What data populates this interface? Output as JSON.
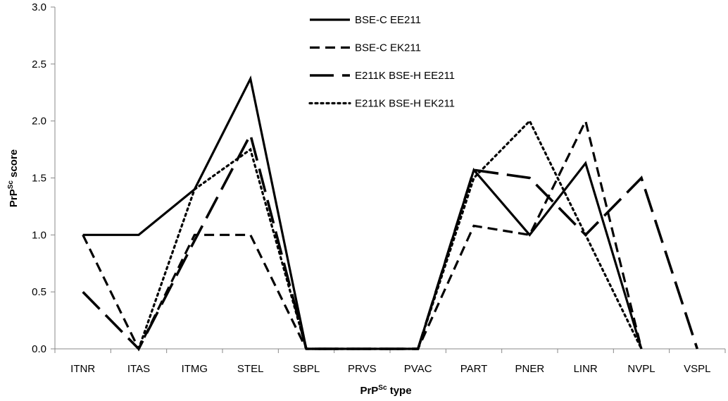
{
  "chart_data": {
    "type": "line",
    "title": "",
    "xlabel": {
      "main": "PrP",
      "sup": "Sc",
      "rest": " type"
    },
    "ylabel": {
      "main": "PrP",
      "sup": "Sc",
      "rest": " score"
    },
    "ylim": [
      0,
      3.0
    ],
    "yticks": [
      "0.0",
      "0.5",
      "1.0",
      "1.5",
      "2.0",
      "2.5",
      "3.0"
    ],
    "grid": false,
    "legend_position": "top-center",
    "categories": [
      "ITNR",
      "ITAS",
      "ITMG",
      "STEL",
      "SBPL",
      "PRVS",
      "PVAC",
      "PART",
      "PNER",
      "LINR",
      "NVPL",
      "VSPL"
    ],
    "series": [
      {
        "name": "BSE-C EE211",
        "style": "solid",
        "color": "#000000",
        "values": [
          1.0,
          1.0,
          1.4,
          2.37,
          0,
          0,
          0,
          1.57,
          1.0,
          1.63,
          0,
          null
        ]
      },
      {
        "name": "BSE-C EK211",
        "style": "dashed",
        "color": "#000000",
        "values": [
          1.0,
          0,
          1.0,
          1.0,
          0,
          0,
          0,
          1.08,
          1.0,
          2.0,
          0,
          null
        ]
      },
      {
        "name": "E211K BSE-H EE211",
        "style": "long-dashed",
        "color": "#000000",
        "values": [
          0.5,
          0,
          0.95,
          1.88,
          0,
          0,
          0,
          1.57,
          1.5,
          1.0,
          1.5,
          0
        ]
      },
      {
        "name": "E211K BSE-H EK211",
        "style": "dotted",
        "color": "#000000",
        "values": [
          null,
          0,
          1.4,
          1.75,
          0,
          0,
          0,
          1.5,
          2.0,
          1.0,
          0,
          null
        ]
      }
    ]
  }
}
